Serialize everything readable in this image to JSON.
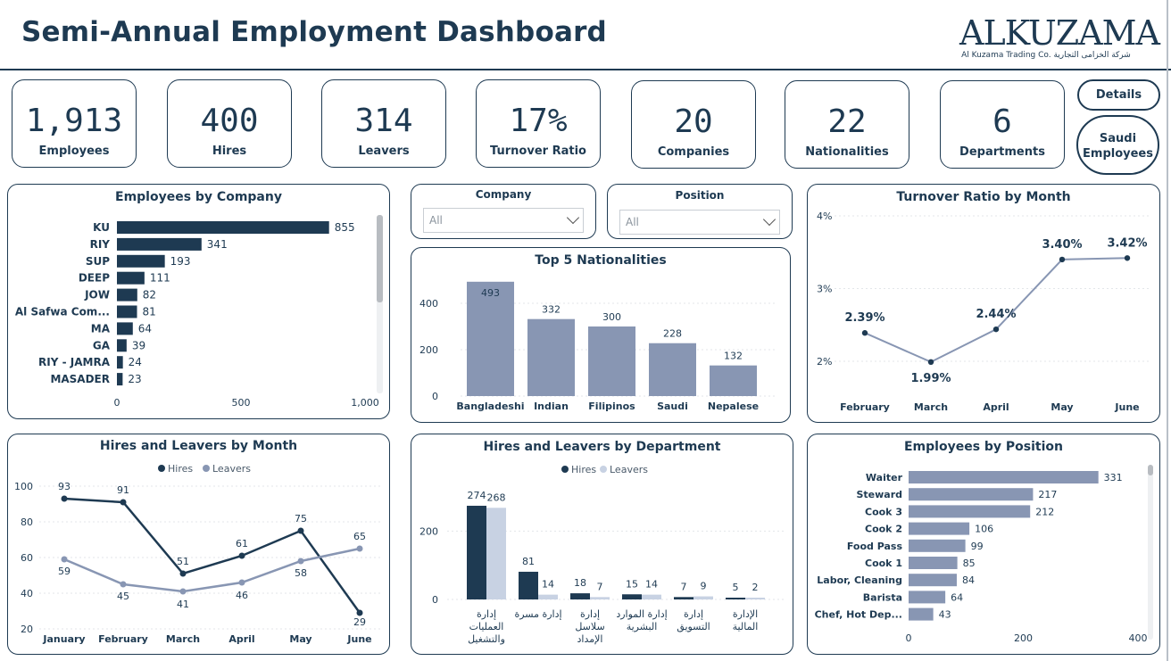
{
  "header": {
    "title": "Semi-Annual Employment Dashboard",
    "logo_text": "ALKUZAMA",
    "logo_subtext": "Al Kuzama Trading Co. شركة الخزامى التجارية"
  },
  "kpis": [
    {
      "value": "1,913",
      "label": "Employees"
    },
    {
      "value": "400",
      "label": "Hires"
    },
    {
      "value": "314",
      "label": "Leavers"
    },
    {
      "value": "17%",
      "label": "Turnover Ratio"
    },
    {
      "value": "20",
      "label": "Companies"
    },
    {
      "value": "22",
      "label": "Nationalities"
    },
    {
      "value": "6",
      "label": "Departments"
    }
  ],
  "nav": {
    "details_label": "Details",
    "saudi_label_1": "Saudi",
    "saudi_label_2": "Employees"
  },
  "slicers": {
    "company": {
      "label": "Company",
      "value": "All"
    },
    "position": {
      "label": "Position",
      "value": "All"
    }
  },
  "colors": {
    "dark": "#1e3a52",
    "medium": "#8896b3",
    "light": "#c8d2e3",
    "border": "#1e3a52"
  },
  "chart_data": [
    {
      "id": "company",
      "type": "bar",
      "orientation": "horizontal",
      "title": "Employees by Company",
      "categories": [
        "KU",
        "RIY",
        "SUP",
        "DEEP",
        "JOW",
        "Al Safwa Com...",
        "MA",
        "GA",
        "RIY - JAMRA",
        "MASADER"
      ],
      "values": [
        855,
        341,
        193,
        111,
        82,
        81,
        64,
        39,
        24,
        23
      ],
      "xticks": [
        "0",
        "500",
        "1,000"
      ],
      "xlim": [
        0,
        1000
      ],
      "color": "#1e3a52"
    },
    {
      "id": "nationalities",
      "type": "bar",
      "title": "Top 5 Nationalities",
      "categories": [
        "Bangladeshi",
        "Indian",
        "Filipinos",
        "Saudi",
        "Nepalese"
      ],
      "values": [
        493,
        332,
        300,
        228,
        132
      ],
      "yticks": [
        "0",
        "200",
        "400"
      ],
      "ylim": [
        0,
        500
      ],
      "color": "#8896b3"
    },
    {
      "id": "turnover",
      "type": "line",
      "title": "Turnover Ratio by Month",
      "categories": [
        "February",
        "March",
        "April",
        "May",
        "June"
      ],
      "values": [
        2.39,
        1.99,
        2.44,
        3.4,
        3.42
      ],
      "labels": [
        "2.39%",
        "1.99%",
        "2.44%",
        "3.40%",
        "3.42%"
      ],
      "yticks": [
        "2%",
        "3%",
        "4%"
      ],
      "ylim": [
        2,
        4
      ],
      "color": "#8896b3"
    },
    {
      "id": "hires_leavers_month",
      "type": "line",
      "title": "Hires and Leavers by Month",
      "categories": [
        "January",
        "February",
        "March",
        "April",
        "May",
        "June"
      ],
      "series": [
        {
          "name": "Hires",
          "values": [
            93,
            91,
            51,
            61,
            75,
            29
          ],
          "color": "#1e3a52"
        },
        {
          "name": "Leavers",
          "values": [
            59,
            45,
            41,
            46,
            58,
            65
          ],
          "color": "#8896b3"
        }
      ],
      "yticks": [
        "20",
        "40",
        "60",
        "80",
        "100"
      ],
      "ylim": [
        20,
        100
      ]
    },
    {
      "id": "hires_leavers_dept",
      "type": "bar",
      "title": "Hires and Leavers by Department",
      "categories": [
        "إدارة العمليات والتشغيل",
        "إدارة مسرة",
        "إدارة سلاسل الإمداد",
        "إدارة الموارد البشرية",
        "إدارة التسويق",
        "الإدارة المالية"
      ],
      "category_lines": [
        [
          "إدارة",
          "العمليات",
          "والتشغيل"
        ],
        [
          "إدارة مسرة"
        ],
        [
          "إدارة",
          "سلاسل",
          "الإمداد"
        ],
        [
          "إدارة الموارد",
          "البشرية"
        ],
        [
          "إدارة",
          "التسويق"
        ],
        [
          "الإدارة",
          "المالية"
        ]
      ],
      "series": [
        {
          "name": "Hires",
          "values": [
            274,
            81,
            18,
            15,
            7,
            5
          ],
          "color": "#1e3a52"
        },
        {
          "name": "Leavers",
          "values": [
            268,
            14,
            7,
            14,
            9,
            2
          ],
          "color": "#c8d2e3"
        }
      ],
      "yticks": [
        "0",
        "200"
      ],
      "ylim": [
        0,
        300
      ]
    },
    {
      "id": "position",
      "type": "bar",
      "orientation": "horizontal",
      "title": "Employees by Position",
      "categories": [
        "Waiter",
        "Steward",
        "Cook 3",
        "Cook 2",
        "Food Pass",
        "Cook 1",
        "Labor, Cleaning",
        "Barista",
        "Chef, Hot Dep..."
      ],
      "values": [
        331,
        217,
        212,
        106,
        99,
        85,
        84,
        64,
        43
      ],
      "xticks": [
        "0",
        "200",
        "400"
      ],
      "xlim": [
        0,
        400
      ],
      "color": "#8896b3"
    }
  ]
}
